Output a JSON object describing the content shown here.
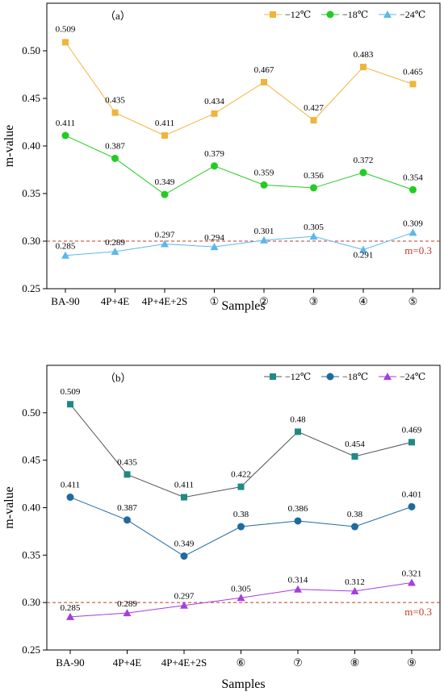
{
  "chart_data": [
    {
      "type": "line",
      "panel_label": "（a）",
      "xlabel": "Samples",
      "ylabel": "m-value",
      "ylim": [
        0.25,
        0.55
      ],
      "yticks": [
        "0.25",
        "0.30",
        "0.35",
        "0.40",
        "0.45",
        "0.50"
      ],
      "categories": [
        "BA-90",
        "4P+4E",
        "4P+4E+2S",
        "①",
        "②",
        "③",
        "④",
        "⑤"
      ],
      "legend_position": "top-right",
      "reference_line": {
        "value": 0.3,
        "label": "m=0.3",
        "color": "#c0392b"
      },
      "series": [
        {
          "name": "−12℃",
          "marker": "square",
          "color": "#f0b43c",
          "line_color": "#f0b43c",
          "values": [
            0.509,
            0.435,
            0.411,
            0.434,
            0.467,
            0.427,
            0.483,
            0.465
          ],
          "labels": [
            "0.509",
            "0.435",
            "0.411",
            "0.434",
            "0.467",
            "0.427",
            "0.483",
            "0.465"
          ]
        },
        {
          "name": "−18℃",
          "marker": "circle",
          "color": "#22cc22",
          "line_color": "#22cc22",
          "values": [
            0.411,
            0.387,
            0.349,
            0.379,
            0.359,
            0.356,
            0.372,
            0.354
          ],
          "labels": [
            "0.411",
            "0.387",
            "0.349",
            "0.379",
            "0.359",
            "0.356",
            "0.372",
            "0.354"
          ]
        },
        {
          "name": "−24℃",
          "marker": "triangle",
          "color": "#5bb8ec",
          "line_color": "#5bb8ec",
          "values": [
            0.285,
            0.289,
            0.297,
            0.294,
            0.301,
            0.305,
            0.291,
            0.309
          ],
          "labels": [
            "0.285",
            "0.289",
            "0.297",
            "0.294",
            "0.301",
            "0.305",
            "0.291",
            "0.309"
          ]
        }
      ]
    },
    {
      "type": "line",
      "panel_label": "（b）",
      "xlabel": "Samples",
      "ylabel": "m-value",
      "ylim": [
        0.25,
        0.55
      ],
      "yticks": [
        "0.25",
        "0.30",
        "0.35",
        "0.40",
        "0.45",
        "0.50"
      ],
      "categories": [
        "BA-90",
        "4P+4E",
        "4P+4E+2S",
        "⑥",
        "⑦",
        "⑧",
        "⑨"
      ],
      "legend_position": "top-right",
      "reference_line": {
        "value": 0.3,
        "label": "m=0.3",
        "color": "#c0392b"
      },
      "series": [
        {
          "name": "−12℃",
          "marker": "square",
          "color": "#1f8a84",
          "line_color": "#555555",
          "values": [
            0.509,
            0.435,
            0.411,
            0.422,
            0.48,
            0.454,
            0.469
          ],
          "labels": [
            "0.509",
            "0.435",
            "0.411",
            "0.422",
            "0.48",
            "0.454",
            "0.469"
          ]
        },
        {
          "name": "−18℃",
          "marker": "circle",
          "color": "#1f6a9e",
          "line_color": "#1f6a9e",
          "values": [
            0.411,
            0.387,
            0.349,
            0.38,
            0.386,
            0.38,
            0.401
          ],
          "labels": [
            "0.411",
            "0.387",
            "0.349",
            "0.38",
            "0.386",
            "0.38",
            "0.401"
          ]
        },
        {
          "name": "−24℃",
          "marker": "triangle",
          "color": "#a43ee0",
          "line_color": "#a43ee0",
          "values": [
            0.285,
            0.289,
            0.297,
            0.305,
            0.314,
            0.312,
            0.321
          ],
          "labels": [
            "0.285",
            "0.289",
            "0.297",
            "0.305",
            "0.314",
            "0.312",
            "0.321"
          ]
        }
      ]
    }
  ]
}
